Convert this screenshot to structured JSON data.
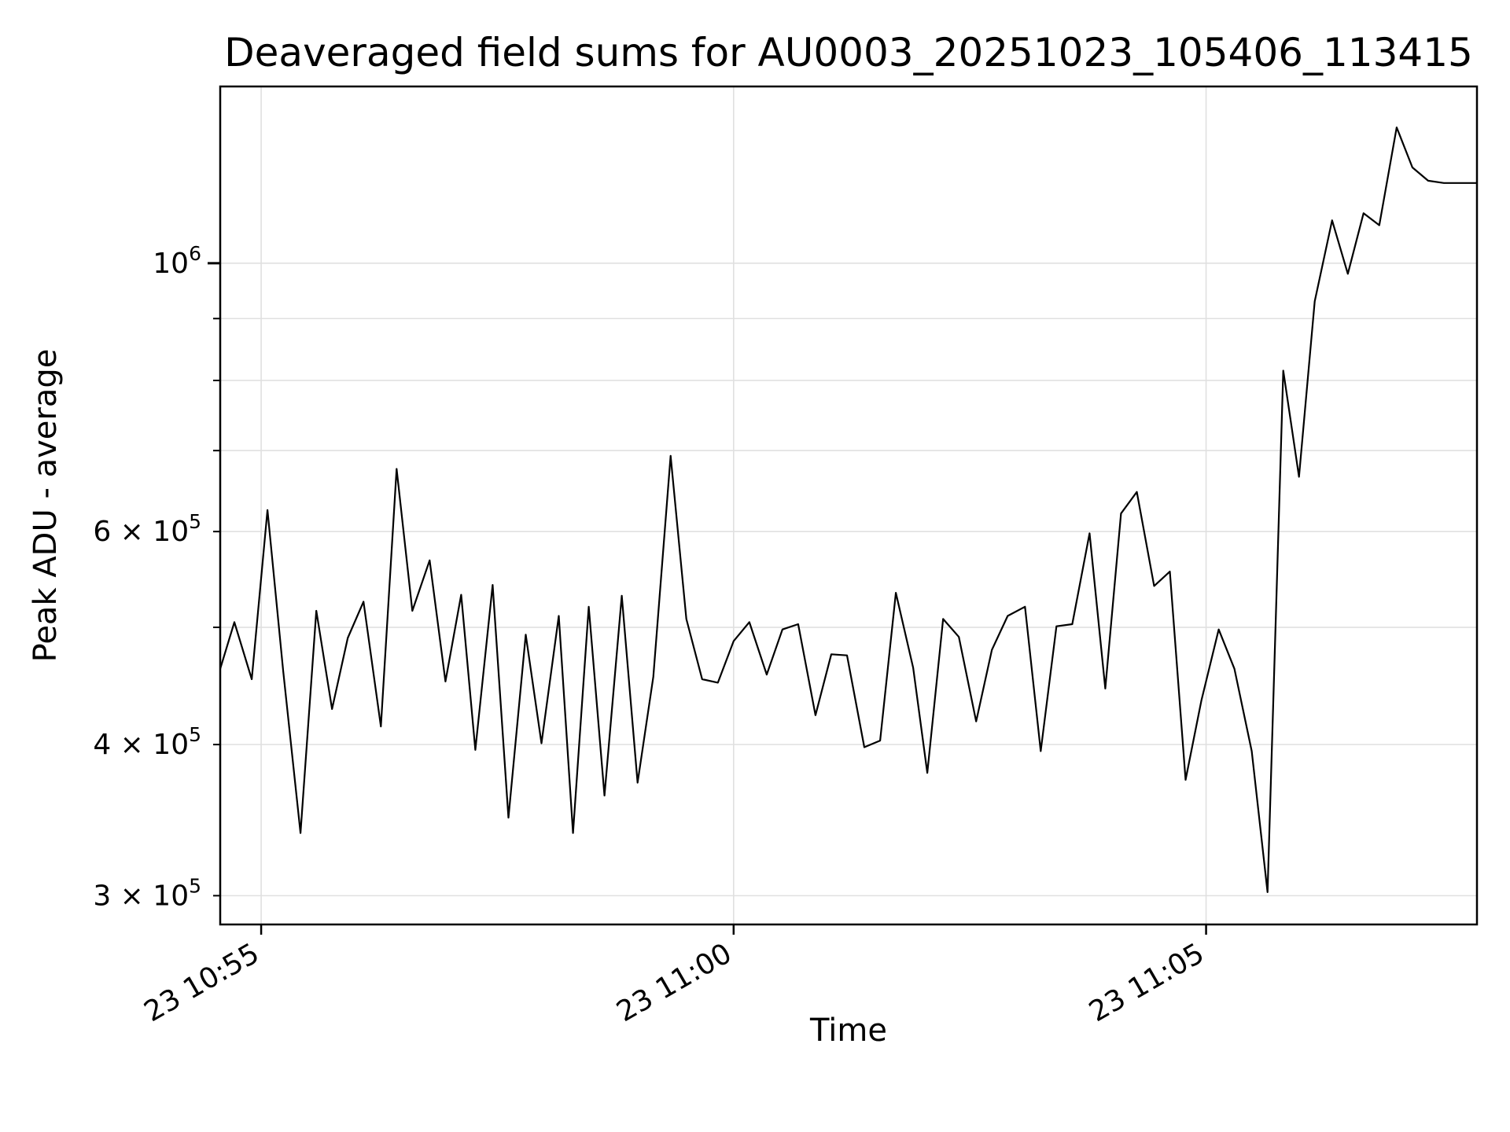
{
  "figure": {
    "title": "Deaveraged field sums for AU0003_20251023_105406_113415",
    "xlabel": "Time",
    "ylabel": "Peak ADU - average",
    "background_color": "#ffffff",
    "line_color": "#000000",
    "grid_color": "#e0e0e0",
    "spine_color": "#000000",
    "text_color": "#000000"
  },
  "chart_data": {
    "type": "line",
    "title": "Deaveraged field sums for AU0003_20251023_105406_113415",
    "xlabel": "Time",
    "ylabel": "Peak ADU - average",
    "yscale": "log",
    "grid": true,
    "legend": "none",
    "x_unit_note": "seconds along time axis; tick anchors below",
    "xlim_sec": [
      0,
      798
    ],
    "ylim": [
      284000,
      1400000
    ],
    "x_ticks": [
      {
        "t": 26,
        "label": "23 10:55"
      },
      {
        "t": 326,
        "label": "23 11:00"
      },
      {
        "t": 626,
        "label": "23 11:05"
      }
    ],
    "y_gridlines": [
      300000,
      400000,
      500000,
      600000,
      700000,
      800000,
      900000,
      1000000
    ],
    "y_tick_marks_unlabeled": [
      500000,
      700000,
      800000,
      900000
    ],
    "y_ticks_labeled": [
      {
        "v": 1000000,
        "base": "10",
        "sup": "6",
        "major": true
      },
      {
        "v": 600000,
        "base": "6 × 10",
        "sup": "5",
        "major": false
      },
      {
        "v": 400000,
        "base": "4 × 10",
        "sup": "5",
        "major": false
      },
      {
        "v": 300000,
        "base": "3 × 10",
        "sup": "5",
        "major": false
      }
    ],
    "points": [
      [
        0,
        462000
      ],
      [
        9,
        505000
      ],
      [
        20,
        453000
      ],
      [
        30,
        625000
      ],
      [
        40,
        460000
      ],
      [
        51,
        338000
      ],
      [
        61,
        516000
      ],
      [
        71,
        428000
      ],
      [
        81,
        490000
      ],
      [
        91,
        525000
      ],
      [
        102,
        414000
      ],
      [
        112,
        676000
      ],
      [
        122,
        516000
      ],
      [
        133,
        568000
      ],
      [
        143,
        451000
      ],
      [
        153,
        532000
      ],
      [
        162,
        396000
      ],
      [
        173,
        542000
      ],
      [
        183,
        348000
      ],
      [
        194,
        493000
      ],
      [
        204,
        401000
      ],
      [
        215,
        511000
      ],
      [
        224,
        338000
      ],
      [
        234,
        520000
      ],
      [
        244,
        363000
      ],
      [
        255,
        531000
      ],
      [
        265,
        372000
      ],
      [
        275,
        455000
      ],
      [
        286,
        693000
      ],
      [
        296,
        508000
      ],
      [
        306,
        453000
      ],
      [
        316,
        450000
      ],
      [
        326,
        487000
      ],
      [
        336,
        505000
      ],
      [
        347,
        457000
      ],
      [
        357,
        498000
      ],
      [
        367,
        503000
      ],
      [
        378,
        423000
      ],
      [
        388,
        475000
      ],
      [
        398,
        474000
      ],
      [
        409,
        398000
      ],
      [
        419,
        403000
      ],
      [
        429,
        534000
      ],
      [
        440,
        463000
      ],
      [
        449,
        379000
      ],
      [
        459,
        508000
      ],
      [
        469,
        491000
      ],
      [
        480,
        418000
      ],
      [
        490,
        479000
      ],
      [
        500,
        511000
      ],
      [
        511,
        520000
      ],
      [
        521,
        395000
      ],
      [
        531,
        501000
      ],
      [
        541,
        503000
      ],
      [
        552,
        598000
      ],
      [
        562,
        445000
      ],
      [
        572,
        621000
      ],
      [
        582,
        647000
      ],
      [
        593,
        541000
      ],
      [
        603,
        556000
      ],
      [
        613,
        374000
      ],
      [
        623,
        435000
      ],
      [
        634,
        498000
      ],
      [
        644,
        462000
      ],
      [
        655,
        395000
      ],
      [
        665,
        302000
      ],
      [
        675,
        815000
      ],
      [
        685,
        666000
      ],
      [
        695,
        930000
      ],
      [
        706,
        1085000
      ],
      [
        716,
        980000
      ],
      [
        726,
        1100000
      ],
      [
        736,
        1075000
      ],
      [
        747,
        1295000
      ],
      [
        757,
        1200000
      ],
      [
        767,
        1170000
      ],
      [
        777,
        1165000
      ],
      [
        788,
        1165000
      ],
      [
        798,
        1165000
      ]
    ]
  }
}
